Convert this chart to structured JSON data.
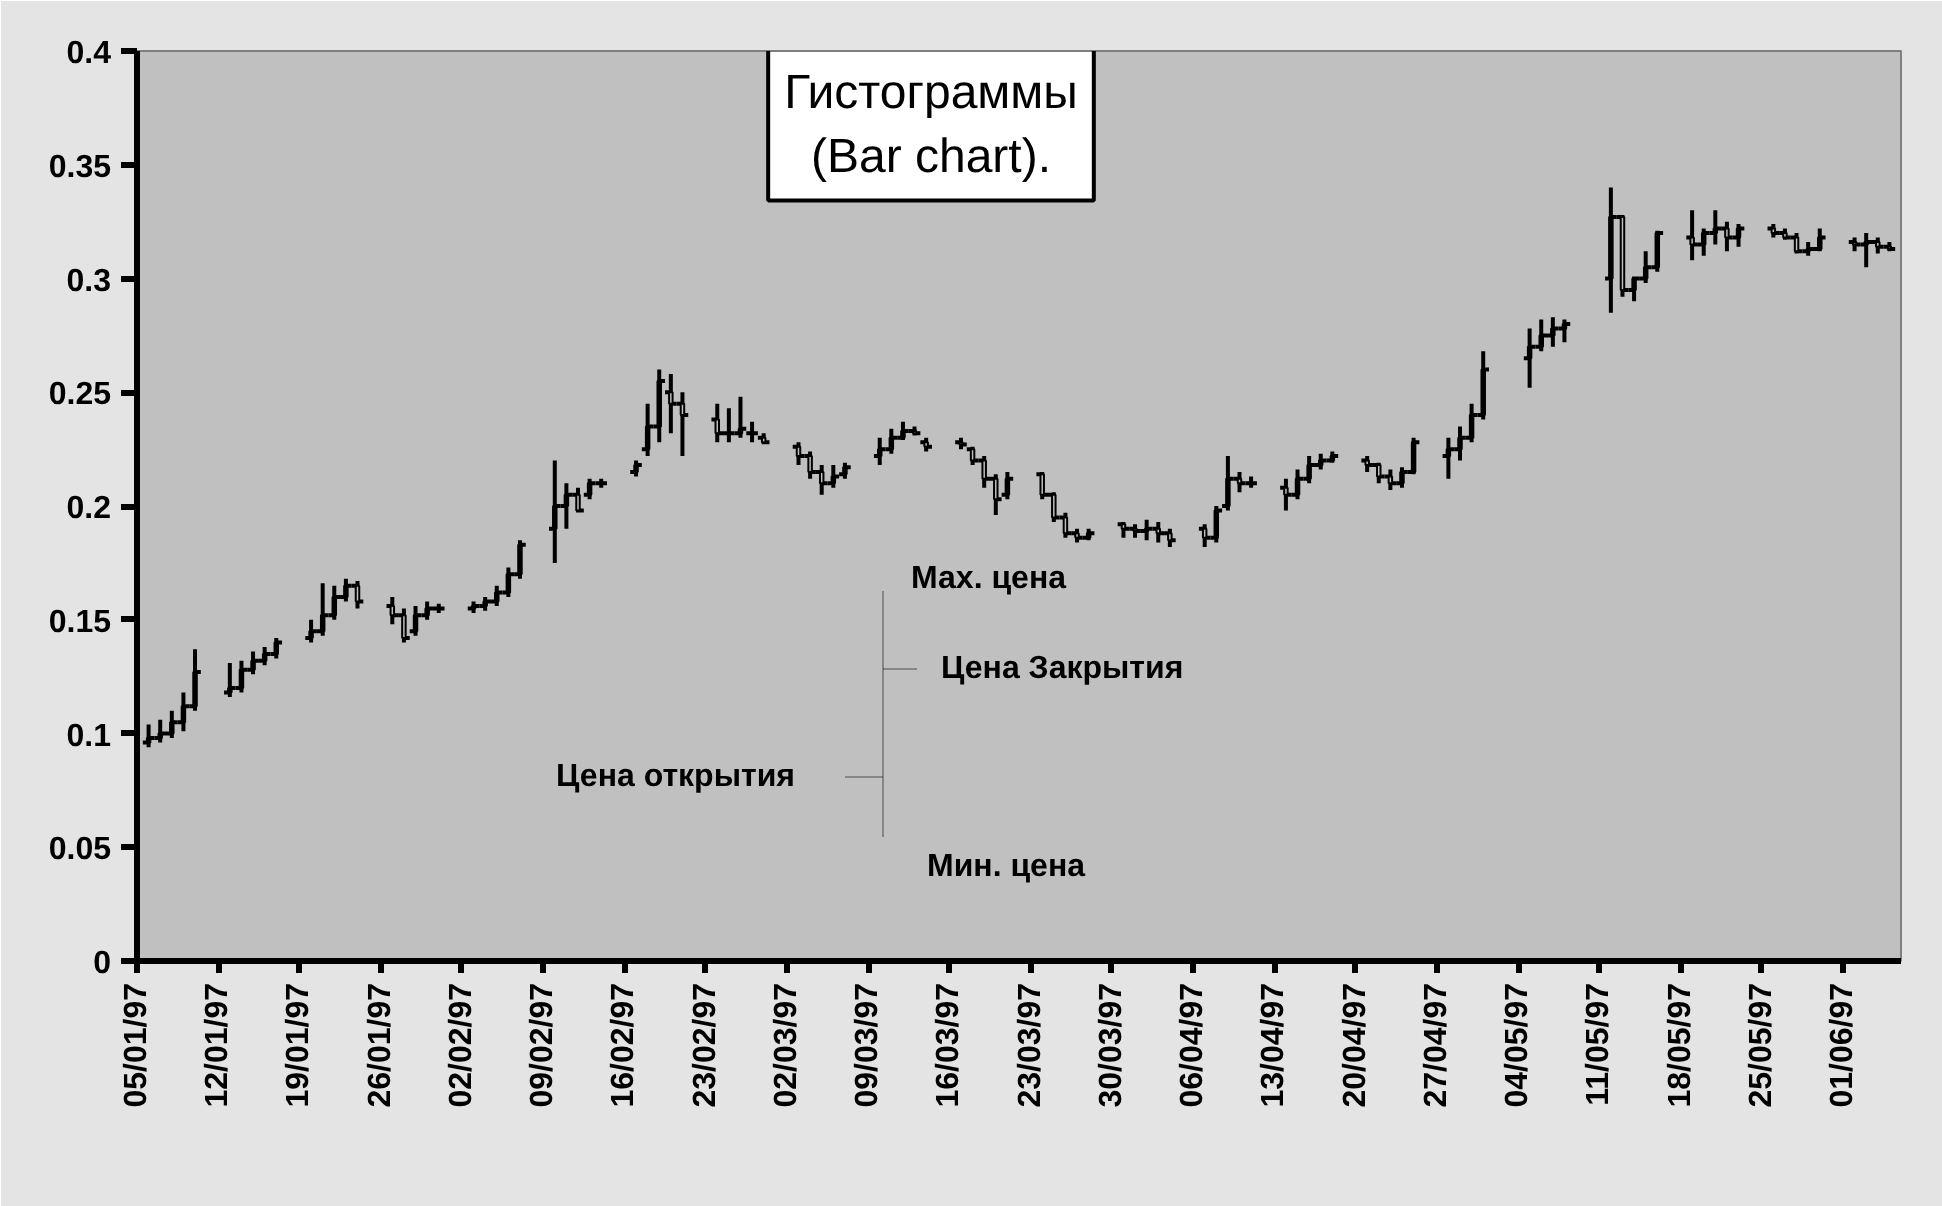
{
  "chart_data": {
    "type": "candlestick",
    "title": "Гистограммы\n(Bar chart).",
    "x": [
      "1997-01-06",
      "1997-01-07",
      "1997-01-08",
      "1997-01-09",
      "1997-01-10",
      "1997-01-13",
      "1997-01-14",
      "1997-01-15",
      "1997-01-16",
      "1997-01-17",
      "1997-01-20",
      "1997-01-21",
      "1997-01-22",
      "1997-01-23",
      "1997-01-24",
      "1997-01-27",
      "1997-01-28",
      "1997-01-29",
      "1997-01-30",
      "1997-01-31",
      "1997-02-03",
      "1997-02-04",
      "1997-02-05",
      "1997-02-06",
      "1997-02-07",
      "1997-02-10",
      "1997-02-11",
      "1997-02-12",
      "1997-02-13",
      "1997-02-14",
      "1997-02-17",
      "1997-02-18",
      "1997-02-19",
      "1997-02-20",
      "1997-02-21",
      "1997-02-24",
      "1997-02-25",
      "1997-02-26",
      "1997-02-27",
      "1997-02-28",
      "1997-03-03",
      "1997-03-04",
      "1997-03-05",
      "1997-03-06",
      "1997-03-07",
      "1997-03-10",
      "1997-03-11",
      "1997-03-12",
      "1997-03-13",
      "1997-03-14",
      "1997-03-17",
      "1997-03-18",
      "1997-03-19",
      "1997-03-20",
      "1997-03-21",
      "1997-03-24",
      "1997-03-25",
      "1997-03-26",
      "1997-03-27",
      "1997-03-28",
      "1997-03-31",
      "1997-04-01",
      "1997-04-02",
      "1997-04-03",
      "1997-04-04",
      "1997-04-07",
      "1997-04-08",
      "1997-04-09",
      "1997-04-10",
      "1997-04-11",
      "1997-04-14",
      "1997-04-15",
      "1997-04-16",
      "1997-04-17",
      "1997-04-18",
      "1997-04-21",
      "1997-04-22",
      "1997-04-23",
      "1997-04-24",
      "1997-04-25",
      "1997-04-28",
      "1997-04-29",
      "1997-04-30",
      "1997-05-01",
      "1997-05-05",
      "1997-05-06",
      "1997-05-07",
      "1997-05-08",
      "1997-05-12",
      "1997-05-13",
      "1997-05-14",
      "1997-05-15",
      "1997-05-16",
      "1997-05-19",
      "1997-05-20",
      "1997-05-21",
      "1997-05-22",
      "1997-05-23",
      "1997-05-26",
      "1997-05-27",
      "1997-05-28",
      "1997-05-29",
      "1997-05-30",
      "1997-06-02",
      "1997-06-03",
      "1997-06-04",
      "1997-06-05"
    ],
    "ohlc": [
      [
        0.096,
        0.104,
        0.094,
        0.098
      ],
      [
        0.098,
        0.106,
        0.096,
        0.1
      ],
      [
        0.1,
        0.11,
        0.098,
        0.105
      ],
      [
        0.105,
        0.118,
        0.101,
        0.112
      ],
      [
        0.112,
        0.137,
        0.11,
        0.127
      ],
      [
        0.118,
        0.131,
        0.116,
        0.12
      ],
      [
        0.12,
        0.132,
        0.118,
        0.128
      ],
      [
        0.128,
        0.136,
        0.126,
        0.132
      ],
      [
        0.132,
        0.138,
        0.13,
        0.135
      ],
      [
        0.135,
        0.142,
        0.133,
        0.14
      ],
      [
        0.142,
        0.15,
        0.14,
        0.145
      ],
      [
        0.145,
        0.166,
        0.143,
        0.152
      ],
      [
        0.152,
        0.165,
        0.15,
        0.16
      ],
      [
        0.16,
        0.168,
        0.158,
        0.165
      ],
      [
        0.165,
        0.167,
        0.155,
        0.158
      ],
      [
        0.156,
        0.16,
        0.148,
        0.152
      ],
      [
        0.152,
        0.155,
        0.14,
        0.142
      ],
      [
        0.145,
        0.156,
        0.143,
        0.152
      ],
      [
        0.152,
        0.158,
        0.15,
        0.155
      ],
      [
        0.155,
        0.157,
        0.153,
        0.155
      ],
      [
        0.155,
        0.158,
        0.153,
        0.156
      ],
      [
        0.156,
        0.16,
        0.154,
        0.158
      ],
      [
        0.158,
        0.165,
        0.156,
        0.162
      ],
      [
        0.162,
        0.173,
        0.16,
        0.17
      ],
      [
        0.17,
        0.185,
        0.168,
        0.183
      ],
      [
        0.19,
        0.22,
        0.175,
        0.2
      ],
      [
        0.2,
        0.21,
        0.19,
        0.205
      ],
      [
        0.205,
        0.208,
        0.198,
        0.198
      ],
      [
        0.205,
        0.212,
        0.203,
        0.21
      ],
      [
        0.21,
        0.212,
        0.208,
        0.21
      ],
      [
        0.215,
        0.22,
        0.213,
        0.218
      ],
      [
        0.225,
        0.245,
        0.222,
        0.235
      ],
      [
        0.235,
        0.26,
        0.228,
        0.255
      ],
      [
        0.25,
        0.258,
        0.232,
        0.245
      ],
      [
        0.245,
        0.25,
        0.222,
        0.24
      ],
      [
        0.238,
        0.245,
        0.228,
        0.232
      ],
      [
        0.232,
        0.243,
        0.228,
        0.232
      ],
      [
        0.232,
        0.248,
        0.23,
        0.234
      ],
      [
        0.232,
        0.237,
        0.228,
        0.232
      ],
      [
        0.23,
        0.232,
        0.228,
        0.228
      ],
      [
        0.226,
        0.228,
        0.218,
        0.222
      ],
      [
        0.222,
        0.224,
        0.212,
        0.215
      ],
      [
        0.215,
        0.218,
        0.205,
        0.21
      ],
      [
        0.21,
        0.218,
        0.208,
        0.213
      ],
      [
        0.214,
        0.219,
        0.212,
        0.217
      ],
      [
        0.222,
        0.23,
        0.218,
        0.225
      ],
      [
        0.225,
        0.234,
        0.223,
        0.23
      ],
      [
        0.23,
        0.237,
        0.229,
        0.233
      ],
      [
        0.233,
        0.235,
        0.231,
        0.232
      ],
      [
        0.228,
        0.23,
        0.224,
        0.226
      ],
      [
        0.228,
        0.23,
        0.225,
        0.227
      ],
      [
        0.225,
        0.226,
        0.218,
        0.22
      ],
      [
        0.22,
        0.222,
        0.208,
        0.212
      ],
      [
        0.212,
        0.214,
        0.196,
        0.203
      ],
      [
        0.205,
        0.215,
        0.203,
        0.212
      ],
      [
        0.214,
        0.215,
        0.203,
        0.205
      ],
      [
        0.205,
        0.206,
        0.193,
        0.195
      ],
      [
        0.195,
        0.197,
        0.186,
        0.188
      ],
      [
        0.188,
        0.19,
        0.184,
        0.186
      ],
      [
        0.186,
        0.19,
        0.185,
        0.188
      ],
      [
        0.192,
        0.193,
        0.186,
        0.19
      ],
      [
        0.19,
        0.192,
        0.186,
        0.189
      ],
      [
        0.189,
        0.194,
        0.185,
        0.19
      ],
      [
        0.19,
        0.193,
        0.184,
        0.188
      ],
      [
        0.188,
        0.19,
        0.182,
        0.185
      ],
      [
        0.19,
        0.192,
        0.182,
        0.186
      ],
      [
        0.186,
        0.2,
        0.184,
        0.198
      ],
      [
        0.2,
        0.222,
        0.198,
        0.212
      ],
      [
        0.212,
        0.215,
        0.206,
        0.21
      ],
      [
        0.21,
        0.213,
        0.208,
        0.21
      ],
      [
        0.208,
        0.212,
        0.198,
        0.205
      ],
      [
        0.205,
        0.216,
        0.203,
        0.212
      ],
      [
        0.212,
        0.222,
        0.21,
        0.218
      ],
      [
        0.218,
        0.223,
        0.216,
        0.22
      ],
      [
        0.22,
        0.224,
        0.219,
        0.222
      ],
      [
        0.22,
        0.222,
        0.215,
        0.218
      ],
      [
        0.218,
        0.219,
        0.21,
        0.213
      ],
      [
        0.213,
        0.216,
        0.207,
        0.21
      ],
      [
        0.21,
        0.217,
        0.208,
        0.215
      ],
      [
        0.215,
        0.23,
        0.214,
        0.228
      ],
      [
        0.222,
        0.23,
        0.212,
        0.225
      ],
      [
        0.225,
        0.235,
        0.22,
        0.23
      ],
      [
        0.23,
        0.245,
        0.228,
        0.24
      ],
      [
        0.24,
        0.268,
        0.238,
        0.26
      ],
      [
        0.265,
        0.278,
        0.252,
        0.27
      ],
      [
        0.27,
        0.282,
        0.268,
        0.275
      ],
      [
        0.275,
        0.283,
        0.27,
        0.278
      ],
      [
        0.278,
        0.282,
        0.272,
        0.28
      ],
      [
        0.3,
        0.34,
        0.285,
        0.327
      ],
      [
        0.327,
        0.327,
        0.292,
        0.295
      ],
      [
        0.295,
        0.3,
        0.29,
        0.3
      ],
      [
        0.3,
        0.312,
        0.298,
        0.305
      ],
      [
        0.305,
        0.321,
        0.303,
        0.32
      ],
      [
        0.318,
        0.33,
        0.308,
        0.315
      ],
      [
        0.315,
        0.322,
        0.31,
        0.32
      ],
      [
        0.32,
        0.33,
        0.315,
        0.322
      ],
      [
        0.322,
        0.325,
        0.312,
        0.318
      ],
      [
        0.318,
        0.324,
        0.314,
        0.322
      ],
      [
        0.322,
        0.324,
        0.318,
        0.32
      ],
      [
        0.32,
        0.322,
        0.317,
        0.318
      ],
      [
        0.318,
        0.32,
        0.311,
        0.312
      ],
      [
        0.312,
        0.316,
        0.31,
        0.313
      ],
      [
        0.313,
        0.322,
        0.312,
        0.318
      ],
      [
        0.316,
        0.318,
        0.312,
        0.315
      ],
      [
        0.315,
        0.32,
        0.305,
        0.316
      ],
      [
        0.316,
        0.318,
        0.311,
        0.314
      ],
      [
        0.314,
        0.316,
        0.312,
        0.313
      ]
    ],
    "color": "#000000",
    "xlim": [
      "1997-01-05",
      "1997-06-06"
    ],
    "xticks": [
      {
        "value": "1997-01-05",
        "label": "05/01/97"
      },
      {
        "value": "1997-01-12",
        "label": "12/01/97"
      },
      {
        "value": "1997-01-19",
        "label": "19/01/97"
      },
      {
        "value": "1997-01-26",
        "label": "26/01/97"
      },
      {
        "value": "1997-02-02",
        "label": "02/02/97"
      },
      {
        "value": "1997-02-09",
        "label": "09/02/97"
      },
      {
        "value": "1997-02-16",
        "label": "16/02/97"
      },
      {
        "value": "1997-02-23",
        "label": "23/02/97"
      },
      {
        "value": "1997-03-02",
        "label": "02/03/97"
      },
      {
        "value": "1997-03-09",
        "label": "09/03/97"
      },
      {
        "value": "1997-03-16",
        "label": "16/03/97"
      },
      {
        "value": "1997-03-23",
        "label": "23/03/97"
      },
      {
        "value": "1997-03-30",
        "label": "30/03/97"
      },
      {
        "value": "1997-04-06",
        "label": "06/04/97"
      },
      {
        "value": "1997-04-13",
        "label": "13/04/97"
      },
      {
        "value": "1997-04-20",
        "label": "20/04/97"
      },
      {
        "value": "1997-04-27",
        "label": "27/04/97"
      },
      {
        "value": "1997-05-04",
        "label": "04/05/97"
      },
      {
        "value": "1997-05-11",
        "label": "11/05/97"
      },
      {
        "value": "1997-05-18",
        "label": "18/05/97"
      },
      {
        "value": "1997-05-25",
        "label": "25/05/97"
      },
      {
        "value": "1997-06-01",
        "label": "01/06/97"
      }
    ],
    "ylim": [
      0,
      0.4
    ],
    "yticks": [
      0,
      0.05,
      0.1,
      0.15,
      0.2,
      0.25,
      0.3,
      0.35,
      0.4
    ],
    "grid": false,
    "annotations": [
      "Мах. цена",
      "Цена Закрытия",
      "Цена открытия",
      "Мин. цена"
    ]
  }
}
